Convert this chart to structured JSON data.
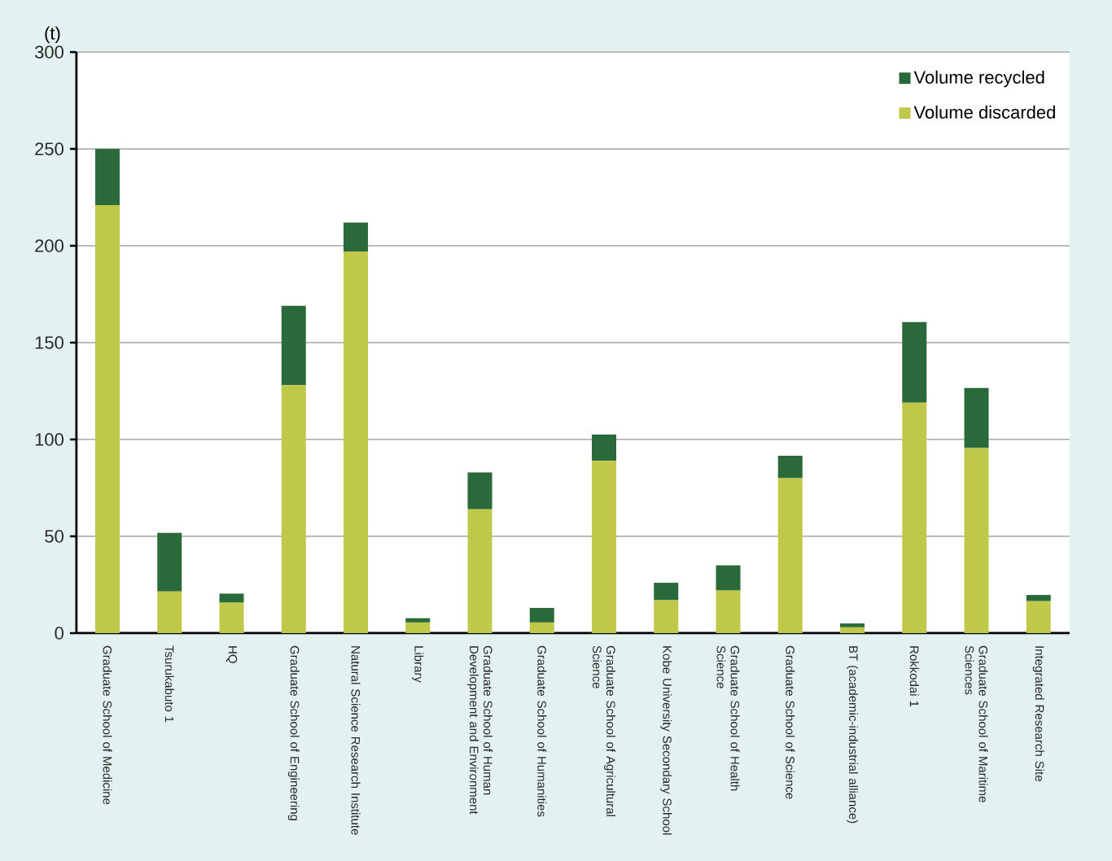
{
  "chart_data": {
    "type": "bar",
    "stacked": true,
    "ylabel": "(t)",
    "categories": [
      "Graduate School of Medicine",
      "Tsurukabuto 1",
      "HQ",
      "Graduate School of Engineering",
      "Natural Science Research Institute",
      "Library",
      "Graduate School of Human Development and Environment",
      "Graduate School of Humanities",
      "Graduate School of Agricultural Science",
      "Kobe University Secondary School",
      "Graduate School of Health Science",
      "Graduate School of Science",
      "BT (academic-industrial alliance)",
      "Rokkodai 1",
      "Graduate School of Maritime Sciences",
      "Integrated Research Site"
    ],
    "series": [
      {
        "name": "Volume discarded",
        "color": "#c0c84a",
        "values": [
          221,
          21.5,
          15.7,
          128,
          197,
          5.5,
          64,
          5.5,
          89,
          17,
          22,
          80,
          3,
          119,
          95.6,
          16.5
        ]
      },
      {
        "name": "Volume recycled",
        "color": "#2a6a3a",
        "values": [
          29,
          30.3,
          4.7,
          41,
          15,
          2.2,
          19,
          7.5,
          13.5,
          9,
          13,
          11.6,
          2,
          41.6,
          31,
          3.2
        ]
      }
    ],
    "ylim": [
      0,
      300
    ],
    "yticks": [
      0,
      50,
      100,
      150,
      200,
      250,
      300
    ],
    "grid": "y",
    "legend": "top right"
  }
}
